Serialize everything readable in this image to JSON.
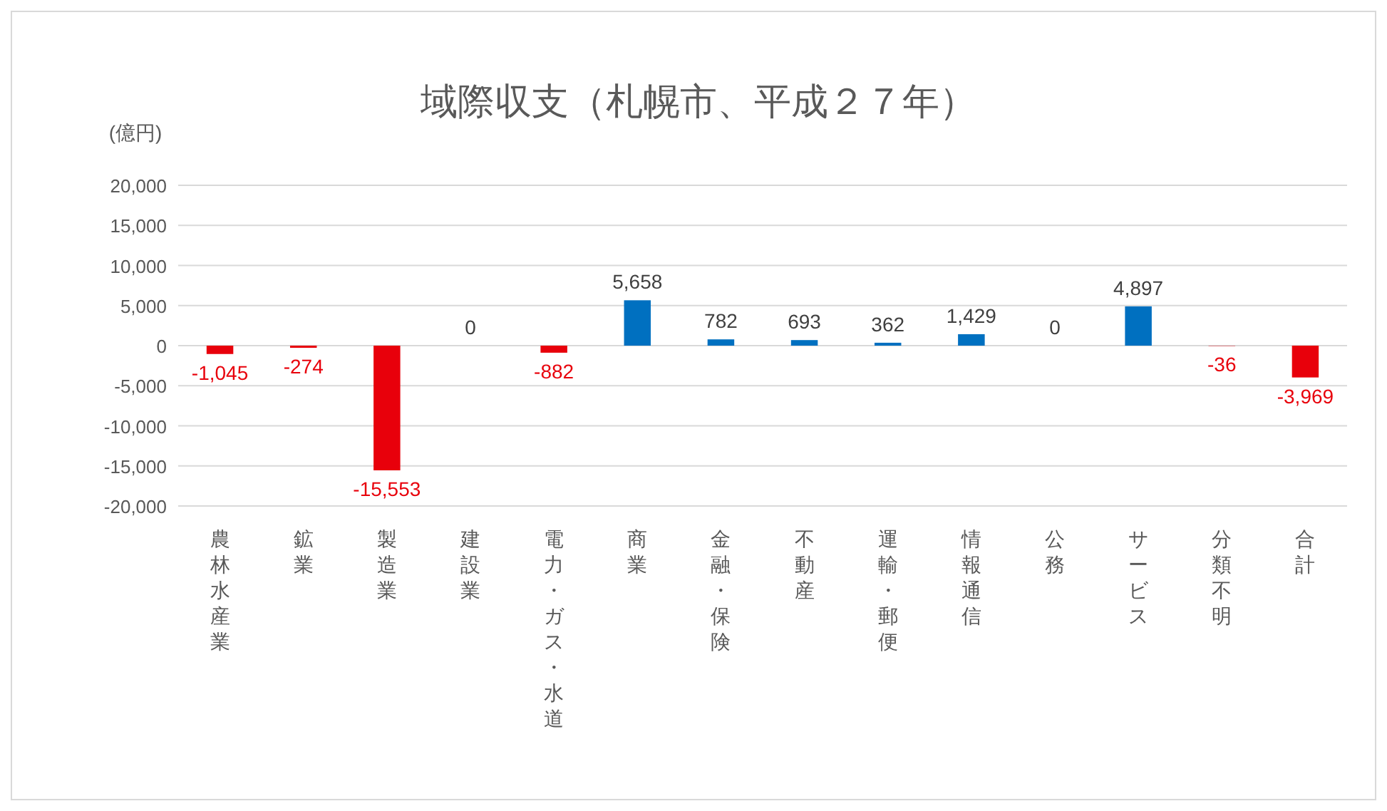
{
  "chart_data": {
    "type": "bar",
    "title": "域際収支（札幌市、平成２７年）",
    "ylabel": "(億円)",
    "categories": [
      "農林水産業",
      "鉱業",
      "製造業",
      "建設業",
      "電力・ガス・水道",
      "商業",
      "金融・保険",
      "不動産",
      "運輸・郵便",
      "情報通信",
      "公務",
      "サービス",
      "分類不明",
      "合計"
    ],
    "values": [
      -1045,
      -274,
      -15553,
      0,
      -882,
      5658,
      782,
      693,
      362,
      1429,
      0,
      4897,
      -36,
      -3969
    ],
    "colors": [
      "#e8000b",
      "#e8000b",
      "#e8000b",
      "#0070c0",
      "#e8000b",
      "#0070c0",
      "#0070c0",
      "#0070c0",
      "#0070c0",
      "#0070c0",
      "#0070c0",
      "#0070c0",
      "#e8000b",
      "#e8000b"
    ],
    "value_labels": [
      "-1,045",
      "-274",
      "-15,553",
      "0",
      "-882",
      "5,658",
      "782",
      "693",
      "362",
      "1,429",
      "0",
      "4,897",
      "-36",
      "-3,969"
    ],
    "ylim": [
      -20000,
      20000
    ],
    "yticks": [
      {
        "value": 20000,
        "label": "20,000"
      },
      {
        "value": 15000,
        "label": "15,000"
      },
      {
        "value": 10000,
        "label": "10,000"
      },
      {
        "value": 5000,
        "label": "5,000"
      },
      0,
      {
        "value": -5000,
        "label": "-5,000"
      },
      {
        "value": -10000,
        "label": "-10,000"
      },
      {
        "value": -15000,
        "label": "-15,000"
      },
      {
        "value": -20000,
        "label": "-20,000"
      }
    ],
    "grid": "y"
  }
}
